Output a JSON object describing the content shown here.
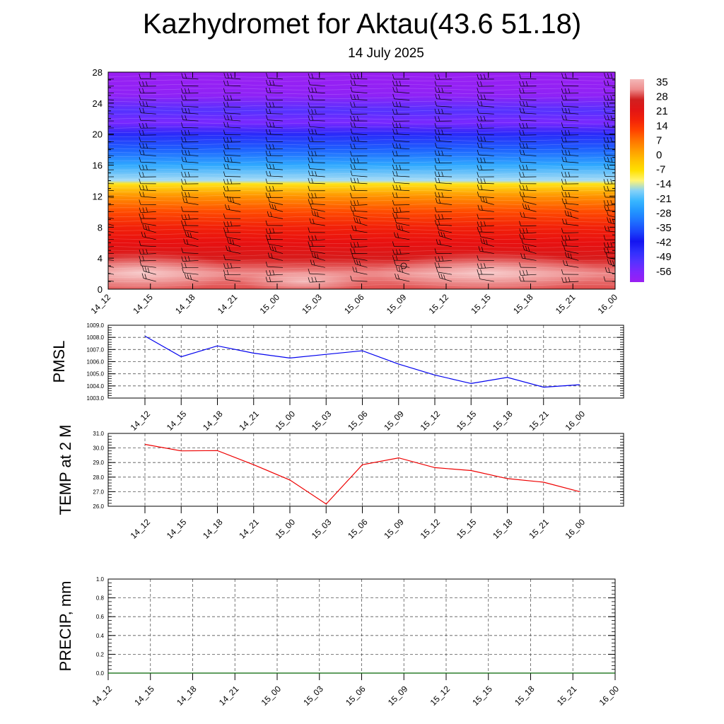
{
  "header": {
    "title": "Kazhydromet for Aktau(43.6 51.18)",
    "subtitle": "14 July 2025"
  },
  "chart_data": [
    {
      "type": "heatmap",
      "title": "",
      "xlabel": "",
      "ylabel": "",
      "ylim": [
        0,
        28
      ],
      "yticks": [
        0,
        4,
        8,
        12,
        16,
        20,
        24,
        28
      ],
      "categories": [
        "14_12",
        "14_15",
        "14_18",
        "14_21",
        "15_00",
        "15_03",
        "15_06",
        "15_09",
        "15_12",
        "15_15",
        "15_18",
        "15_21",
        "16_00"
      ],
      "colorbar": {
        "labels": [
          "35",
          "28",
          "21",
          "14",
          "7",
          "0",
          "-7",
          "-14",
          "-21",
          "-28",
          "-35",
          "-42",
          "-49",
          "-56"
        ]
      },
      "temperature_profile": [
        {
          "level": 0,
          "value": 30
        },
        {
          "level": 2,
          "value": 33
        },
        {
          "level": 4,
          "value": 26
        },
        {
          "level": 6,
          "value": 21
        },
        {
          "level": 8,
          "value": 18
        },
        {
          "level": 10,
          "value": 12
        },
        {
          "level": 12,
          "value": 4
        },
        {
          "level": 13.6,
          "value": -8
        },
        {
          "level": 14,
          "value": -15
        },
        {
          "level": 16,
          "value": -24
        },
        {
          "level": 18,
          "value": -34
        },
        {
          "level": 20,
          "value": -46
        },
        {
          "level": 21.5,
          "value": -56
        },
        {
          "level": 23,
          "value": -52
        },
        {
          "level": 25,
          "value": -60
        },
        {
          "level": 28,
          "value": -62
        }
      ]
    },
    {
      "type": "line",
      "ylabel": "PMSL",
      "ylim": [
        1003.0,
        1009.0
      ],
      "yticks": [
        "1003.0",
        "1004.0",
        "1005.0",
        "1006.0",
        "1007.0",
        "1008.0",
        "1009.0"
      ],
      "categories": [
        "14_12",
        "14_15",
        "14_18",
        "14_21",
        "15_00",
        "15_03",
        "15_06",
        "15_09",
        "15_12",
        "15_15",
        "15_18",
        "15_21",
        "16_00"
      ],
      "series": [
        {
          "values": [
            1008.1,
            1006.4,
            1007.3,
            1006.7,
            1006.3,
            1006.6,
            1006.9,
            1005.8,
            1004.9,
            1004.2,
            1004.7,
            1003.9,
            1004.1
          ],
          "color": "#0000ee"
        }
      ]
    },
    {
      "type": "line",
      "ylabel": "TEMP at 2 M",
      "ylim": [
        26.0,
        31.0
      ],
      "yticks": [
        "26.0",
        "27.0",
        "28.0",
        "29.0",
        "30.0",
        "31.0"
      ],
      "categories": [
        "14_12",
        "14_15",
        "14_18",
        "14_21",
        "15_00",
        "15_03",
        "15_06",
        "15_09",
        "15_12",
        "15_15",
        "15_18",
        "15_21",
        "16_00"
      ],
      "series": [
        {
          "values": [
            30.25,
            29.8,
            29.82,
            28.85,
            27.8,
            26.15,
            28.85,
            29.32,
            28.65,
            28.45,
            27.9,
            27.65,
            27.0
          ],
          "color": "#ee0000"
        }
      ]
    },
    {
      "type": "line",
      "ylabel": "PRECIP, mm",
      "ylim": [
        0.0,
        1.0
      ],
      "yticks": [
        "0.0",
        "0.2",
        "0.4",
        "0.6",
        "0.8",
        "1.0"
      ],
      "categories": [
        "14_12",
        "14_15",
        "14_18",
        "14_21",
        "15_00",
        "15_03",
        "15_06",
        "15_09",
        "15_12",
        "15_15",
        "15_18",
        "15_21",
        "16_00"
      ],
      "series": [
        {
          "values": [
            0,
            0,
            0,
            0,
            0,
            0,
            0,
            0,
            0,
            0,
            0,
            0,
            0
          ],
          "color": "#006400"
        }
      ]
    }
  ]
}
